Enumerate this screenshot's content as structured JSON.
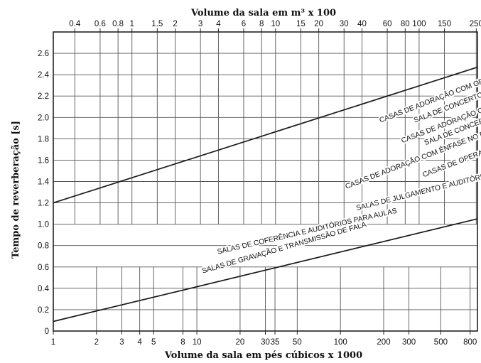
{
  "chart_data": {
    "type": "line",
    "title": "",
    "top_axis_label": "Volume da sala em m³ x 100",
    "xlabel": "Volume da sala em pés cúbicos x 1000",
    "ylabel": "Tempo de reverberação [s]",
    "x_scale": "log",
    "xlim": [
      1,
      900
    ],
    "ylim": [
      0,
      2.8
    ],
    "grid": true,
    "bottom_ticks": [
      {
        "value": 1,
        "label": "1"
      },
      {
        "value": 2,
        "label": "2"
      },
      {
        "value": 3,
        "label": "3"
      },
      {
        "value": 4,
        "label": "4"
      },
      {
        "value": 5,
        "label": "5"
      },
      {
        "value": 8,
        "label": "8"
      },
      {
        "value": 10,
        "label": "10"
      },
      {
        "value": 20,
        "label": "20"
      },
      {
        "value": 30,
        "label": "30"
      },
      {
        "value": 35,
        "label": "35"
      },
      {
        "value": 50,
        "label": "50"
      },
      {
        "value": 100,
        "label": "100"
      },
      {
        "value": 200,
        "label": "200"
      },
      {
        "value": 300,
        "label": "300"
      },
      {
        "value": 500,
        "label": "500"
      },
      {
        "value": 800,
        "label": "800"
      }
    ],
    "top_ticks": [
      {
        "value": 0.4,
        "label": "0.4"
      },
      {
        "value": 0.6,
        "label": "0.6"
      },
      {
        "value": 0.8,
        "label": "0.8"
      },
      {
        "value": 1,
        "label": "1"
      },
      {
        "value": 1.5,
        "label": "1.5"
      },
      {
        "value": 2,
        "label": "2"
      },
      {
        "value": 3,
        "label": "3"
      },
      {
        "value": 4,
        "label": "4"
      },
      {
        "value": 6,
        "label": "6"
      },
      {
        "value": 8,
        "label": "8"
      },
      {
        "value": 10,
        "label": "10"
      },
      {
        "value": 15,
        "label": "15"
      },
      {
        "value": 20,
        "label": "20"
      },
      {
        "value": 30,
        "label": "30"
      },
      {
        "value": 40,
        "label": "40"
      },
      {
        "value": 60,
        "label": "60"
      },
      {
        "value": 80,
        "label": "80"
      },
      {
        "value": 100,
        "label": "100"
      },
      {
        "value": 150,
        "label": "150"
      },
      {
        "value": 250,
        "label": "250"
      }
    ],
    "y_ticks": [
      {
        "value": 0,
        "label": "0"
      },
      {
        "value": 0.2,
        "label": "0.2"
      },
      {
        "value": 0.4,
        "label": "0.4"
      },
      {
        "value": 0.6,
        "label": "0.6"
      },
      {
        "value": 0.8,
        "label": "0.8"
      },
      {
        "value": 1.0,
        "label": "1.0"
      },
      {
        "value": 1.2,
        "label": "1.2"
      },
      {
        "value": 1.4,
        "label": "1.4"
      },
      {
        "value": 1.6,
        "label": "1.6"
      },
      {
        "value": 1.8,
        "label": "1.8"
      },
      {
        "value": 2.0,
        "label": "2.0"
      },
      {
        "value": 2.2,
        "label": "2.2"
      },
      {
        "value": 2.4,
        "label": "2.4"
      },
      {
        "value": 2.6,
        "label": "2.6"
      }
    ],
    "series": [
      {
        "x": [
          1,
          900
        ],
        "y": [
          1.2,
          2.47
        ]
      },
      {
        "x": [
          1,
          900
        ],
        "y": [
          0.09,
          1.05
        ]
      }
    ],
    "annotations": [
      {
        "text": "CASAS DE ADORAÇÃO COM ORGÃO",
        "x": 190,
        "y": 1.95,
        "angle": -21
      },
      {
        "text": "SALA DE CONCERTO - MUSICA ROMÂNTICA",
        "x": 330,
        "y": 1.95,
        "angle": -21
      },
      {
        "text": "CASAS DE ADORAÇÃO COM CORAL",
        "x": 270,
        "y": 1.76,
        "angle": -21
      },
      {
        "text": "SALA DE CONCERTO - MUSICA CLÁSSICA",
        "x": 390,
        "y": 1.74,
        "angle": -21
      },
      {
        "text": "CASAS DE ADORAÇÃO COM ÊNFASE NO DISCURSO",
        "x": 110,
        "y": 1.33,
        "angle": -21
      },
      {
        "text": "CASAS DE OPERA",
        "x": 380,
        "y": 1.44,
        "angle": -21
      },
      {
        "text": "SALAS DE JULGAMENTO E AUDITÓRIOS",
        "x": 130,
        "y": 1.13,
        "angle": -14
      },
      {
        "text": "SALAS DE COFERÊNCIA E AUDITÓRIOS PARA AULAS",
        "x": 14,
        "y": 0.72,
        "angle": -13
      },
      {
        "text": "SALAS DE GRAVAÇÃO E TRANSMISSÃO DE FALA",
        "x": 11,
        "y": 0.54,
        "angle": -16
      }
    ]
  }
}
